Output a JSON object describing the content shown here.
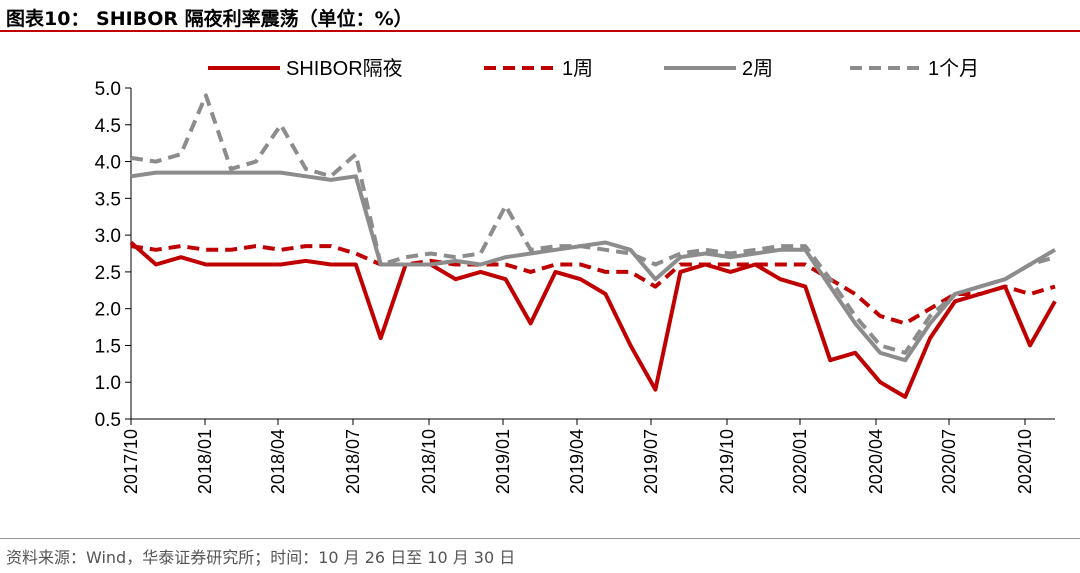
{
  "title": "图表10： SHIBOR 隔夜利率震荡（单位：%）",
  "source": "资料来源：Wind，华泰证券研究所；时间：10 月 26 日至 10 月 30 日",
  "colors": {
    "red": "#c00000",
    "gray": "#8c8c8c",
    "title_rule": "#c00000"
  },
  "chart_data": {
    "type": "line",
    "title": "SHIBOR 隔夜利率震荡（单位：%）",
    "ylim": [
      0.5,
      5.0
    ],
    "yticks": [
      "0.5",
      "1.0",
      "1.5",
      "2.0",
      "2.5",
      "3.0",
      "3.5",
      "4.0",
      "4.5",
      "5.0"
    ],
    "xticks": [
      "2017/10",
      "2018/01",
      "2018/04",
      "2018/07",
      "2018/10",
      "2019/01",
      "2019/04",
      "2019/07",
      "2019/10",
      "2020/01",
      "2020/04",
      "2020/07",
      "2020/10"
    ],
    "x_start": "2017/10",
    "x_end": "2020/10",
    "legend_position": "top",
    "x": [
      "2017/10",
      "2017/11",
      "2017/12",
      "2018/01",
      "2018/02",
      "2018/03",
      "2018/04",
      "2018/05",
      "2018/06",
      "2018/07",
      "2018/08",
      "2018/09",
      "2018/10",
      "2018/11",
      "2018/12",
      "2019/01",
      "2019/02",
      "2019/03",
      "2019/04",
      "2019/05",
      "2019/06",
      "2019/07",
      "2019/08",
      "2019/09",
      "2019/10",
      "2019/11",
      "2019/12",
      "2020/01",
      "2020/02",
      "2020/03",
      "2020/04",
      "2020/05",
      "2020/06",
      "2020/07",
      "2020/08",
      "2020/09",
      "2020/10",
      "2020/11"
    ],
    "series": [
      {
        "name": "SHIBOR隔夜",
        "style": "solid",
        "color": "#c00000",
        "values": [
          2.9,
          2.6,
          2.7,
          2.6,
          2.6,
          2.6,
          2.6,
          2.65,
          2.6,
          2.6,
          1.6,
          2.6,
          2.6,
          2.4,
          2.5,
          2.4,
          1.8,
          2.5,
          2.4,
          2.2,
          1.5,
          0.9,
          2.5,
          2.6,
          2.5,
          2.6,
          2.4,
          2.3,
          1.3,
          1.4,
          1.0,
          0.8,
          1.6,
          2.1,
          2.2,
          2.3,
          1.5,
          2.1
        ]
      },
      {
        "name": "1周",
        "style": "dashed",
        "color": "#c00000",
        "values": [
          2.85,
          2.8,
          2.85,
          2.8,
          2.8,
          2.85,
          2.8,
          2.85,
          2.85,
          2.75,
          2.6,
          2.6,
          2.65,
          2.6,
          2.6,
          2.6,
          2.5,
          2.6,
          2.6,
          2.5,
          2.5,
          2.3,
          2.6,
          2.6,
          2.6,
          2.6,
          2.6,
          2.6,
          2.4,
          2.2,
          1.9,
          1.8,
          2.0,
          2.2,
          2.2,
          2.3,
          2.2,
          2.3
        ]
      },
      {
        "name": "2周",
        "style": "solid",
        "color": "#8c8c8c",
        "values": [
          3.8,
          3.85,
          3.85,
          3.85,
          3.85,
          3.85,
          3.85,
          3.8,
          3.75,
          3.8,
          2.6,
          2.6,
          2.6,
          2.65,
          2.6,
          2.7,
          2.75,
          2.8,
          2.85,
          2.9,
          2.8,
          2.4,
          2.7,
          2.75,
          2.7,
          2.75,
          2.8,
          2.8,
          2.3,
          1.8,
          1.4,
          1.3,
          1.8,
          2.2,
          2.3,
          2.4,
          2.6,
          2.8
        ]
      },
      {
        "name": "1个月",
        "style": "dashed",
        "color": "#8c8c8c",
        "values": [
          4.05,
          4.0,
          4.1,
          4.9,
          3.9,
          4.0,
          4.5,
          3.9,
          3.8,
          4.1,
          2.6,
          2.7,
          2.75,
          2.7,
          2.75,
          3.4,
          2.8,
          2.85,
          2.85,
          2.8,
          2.75,
          2.6,
          2.75,
          2.8,
          2.75,
          2.8,
          2.85,
          2.85,
          2.4,
          1.9,
          1.5,
          1.4,
          1.9,
          2.2,
          2.3,
          2.4,
          2.6,
          2.7
        ]
      }
    ]
  }
}
